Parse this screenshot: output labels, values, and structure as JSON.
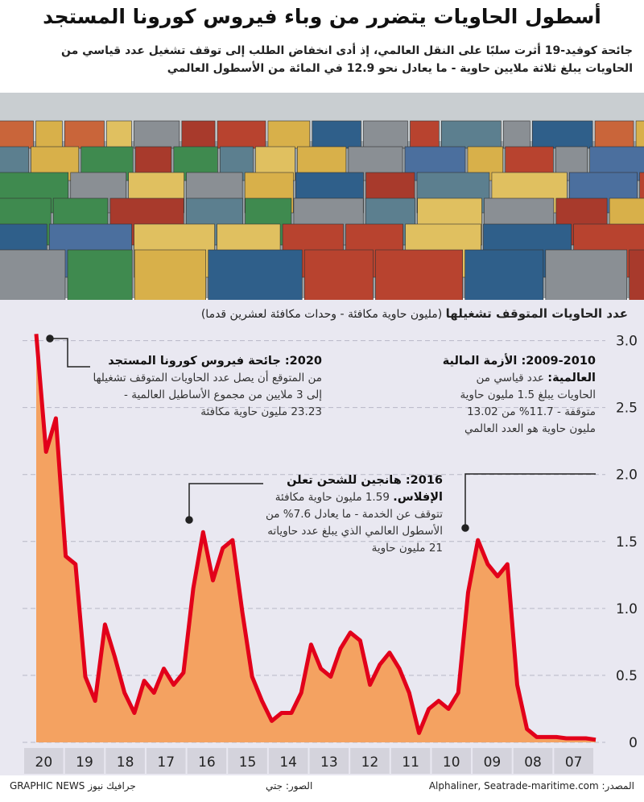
{
  "header": {
    "title": "أسطول الحاويات يتضرر من وباء فيروس كورونا المستجد",
    "subtitle": "جائحة كوفيد-19 أثرت سلبًا على النقل العالمي، إذ أدى انخفاض الطلب إلى توقف تشغيل عدد قياسي من الحاويات يبلغ ثلاثة ملايين حاوية - ما يعادل نحو 12.9 في المائة من الأسطول العالمي"
  },
  "chart_data": {
    "type": "area",
    "title": "عدد الحاويات المتوقف تشغيلها",
    "subtitle": "(مليون حاوية مكافئة - وحدات مكافئة لعشرين قدما)",
    "x_labels": [
      "20",
      "19",
      "18",
      "17",
      "16",
      "15",
      "14",
      "13",
      "12",
      "11",
      "10",
      "09",
      "08",
      "07"
    ],
    "values": [
      3.05,
      2.17,
      2.42,
      1.39,
      1.33,
      0.49,
      0.31,
      0.88,
      0.64,
      0.37,
      0.22,
      0.46,
      0.37,
      0.55,
      0.43,
      0.52,
      1.15,
      1.57,
      1.21,
      1.45,
      1.51,
      0.97,
      0.49,
      0.31,
      0.16,
      0.22,
      0.22,
      0.37,
      0.73,
      0.55,
      0.49,
      0.7,
      0.82,
      0.76,
      0.43,
      0.58,
      0.67,
      0.55,
      0.37,
      0.07,
      0.25,
      0.31,
      0.25,
      0.37,
      1.12,
      1.51,
      1.33,
      1.24,
      1.33,
      0.43,
      0.1,
      0.04,
      0.04,
      0.04,
      0.03,
      0.03,
      0.03,
      0.02
    ],
    "line_color": "#e2001a",
    "fill_color": "#f4a261",
    "ylim": [
      0,
      3.1
    ],
    "yticks": [
      0,
      0.5,
      {
        "value": 1,
        "label": "1.0"
      },
      1.5,
      {
        "value": 2,
        "label": "2.0"
      },
      2.5,
      {
        "value": 3,
        "label": "3.0"
      }
    ],
    "grid": true,
    "annotations": [
      {
        "heading": "2020: جائحة فيروس كورونا المستجد",
        "text": "من المتوقع أن يصل عدد الحاويات المتوقف تشغيلها إلى 3 ملايين من مجموع الأساطيل العالمية - 23.23 مليون حاوية مكافئة"
      },
      {
        "heading": "2016: هانجين للشحن تعلن الإفلاس.",
        "text": "1.59 مليون حاوية مكافئة تتوقف عن الخدمة - ما يعادل 7.6% من الأسطول العالمي الذي يبلغ عدد حاوياته 21 مليون حاوية"
      },
      {
        "heading": "2009-2010: الأزمة المالية العالمية:",
        "text": "عدد قياسي من الحاويات يبلغ 1.5 مليون حاوية متوقفة - 11.7% من 13.02 مليون حاوية هو العدد العالمي"
      }
    ]
  },
  "footer": {
    "source": "المصدر: Alphaliner, Seatrade-maritime.com",
    "photo_credit": "الصور: جتي",
    "brand": "GRAPHIC NEWS جرافيك نيوز"
  }
}
